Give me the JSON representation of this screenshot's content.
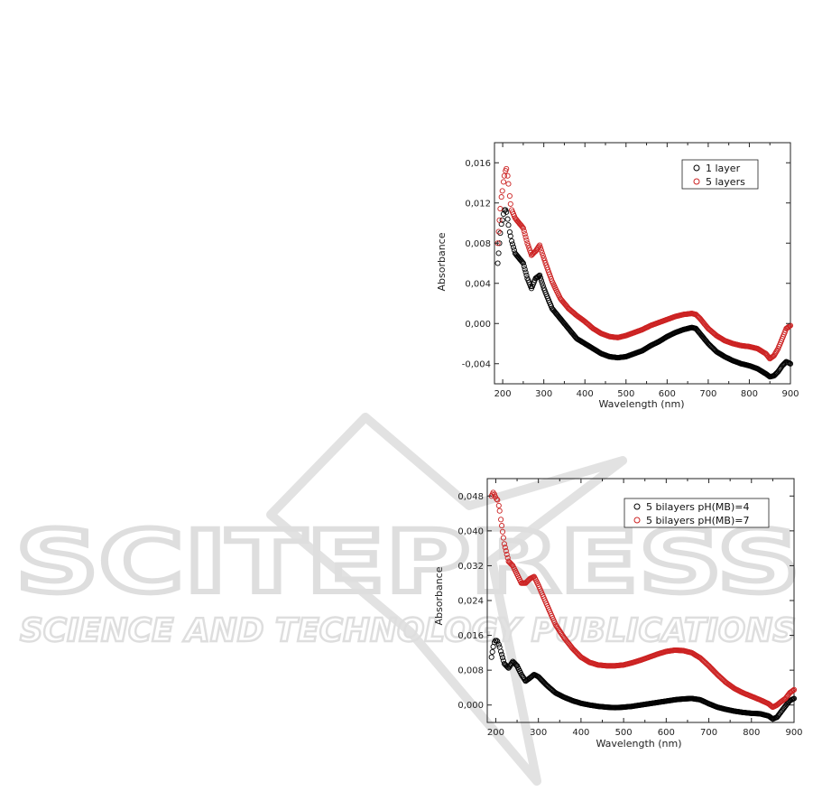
{
  "watermark": {
    "brand": "SCITEPRESS",
    "tagline": "SCIENCE AND TECHNOLOGY PUBLICATIONS",
    "color": "#dcdcdc"
  },
  "chart_data": [
    {
      "type": "scatter",
      "xlabel": "Wavelength (nm)",
      "ylabel": "Absorbance",
      "xlim": [
        180,
        900
      ],
      "ylim": [
        -0.006,
        0.018
      ],
      "xticks": [
        200,
        300,
        400,
        500,
        600,
        700,
        800,
        900
      ],
      "yticks": [
        -0.004,
        0.0,
        0.004,
        0.008,
        0.012,
        0.016
      ],
      "ytick_labels": [
        "-0,004",
        "0,000",
        "0,004",
        "0,008",
        "0,012",
        "0,016"
      ],
      "legend_position": "top-right",
      "marker": "open-circle",
      "series": [
        {
          "name": "1 layer",
          "color": "#000000",
          "x": [
            188,
            195,
            200,
            205,
            210,
            215,
            220,
            230,
            240,
            250,
            260,
            270,
            280,
            290,
            300,
            320,
            340,
            360,
            380,
            400,
            420,
            440,
            460,
            480,
            500,
            520,
            540,
            560,
            580,
            600,
            620,
            640,
            660,
            670,
            680,
            700,
            720,
            740,
            760,
            780,
            800,
            820,
            840,
            850,
            860,
            870,
            880,
            890,
            900
          ],
          "y": [
            0.006,
            0.0095,
            0.0105,
            0.0115,
            0.011,
            0.0095,
            0.0085,
            0.007,
            0.0065,
            0.006,
            0.0045,
            0.0035,
            0.0045,
            0.0048,
            0.0035,
            0.0015,
            0.0005,
            -0.0005,
            -0.0015,
            -0.002,
            -0.0025,
            -0.003,
            -0.0033,
            -0.0034,
            -0.0033,
            -0.003,
            -0.0027,
            -0.0022,
            -0.0018,
            -0.0013,
            -0.0009,
            -0.0006,
            -0.0004,
            -0.0005,
            -0.001,
            -0.002,
            -0.0028,
            -0.0033,
            -0.0037,
            -0.004,
            -0.0042,
            -0.0045,
            -0.005,
            -0.0053,
            -0.0052,
            -0.0048,
            -0.0042,
            -0.0038,
            -0.004
          ]
        },
        {
          "name": "5 layers",
          "color": "#cc2222",
          "x": [
            188,
            195,
            200,
            205,
            210,
            215,
            220,
            230,
            240,
            250,
            260,
            270,
            280,
            290,
            300,
            320,
            340,
            360,
            380,
            400,
            420,
            440,
            460,
            480,
            500,
            520,
            540,
            560,
            580,
            600,
            620,
            640,
            660,
            670,
            680,
            700,
            720,
            740,
            760,
            780,
            800,
            820,
            840,
            850,
            860,
            870,
            880,
            890,
            900
          ],
          "y": [
            0.008,
            0.012,
            0.0135,
            0.015,
            0.0155,
            0.0135,
            0.0115,
            0.0105,
            0.01,
            0.0095,
            0.008,
            0.0068,
            0.0072,
            0.0078,
            0.0065,
            0.0042,
            0.0025,
            0.0015,
            0.0008,
            0.0002,
            -0.0005,
            -0.001,
            -0.0013,
            -0.0014,
            -0.0012,
            -0.0009,
            -0.0006,
            -0.0002,
            0.0001,
            0.0004,
            0.0007,
            0.0009,
            0.001,
            0.0009,
            0.0005,
            -0.0005,
            -0.0012,
            -0.0017,
            -0.002,
            -0.0022,
            -0.0023,
            -0.0025,
            -0.003,
            -0.0035,
            -0.0032,
            -0.0025,
            -0.0015,
            -0.0005,
            -0.0002
          ]
        }
      ]
    },
    {
      "type": "scatter",
      "xlabel": "Wavelength (nm)",
      "ylabel": "Absorbance",
      "xlim": [
        180,
        900
      ],
      "ylim": [
        -0.004,
        0.052
      ],
      "xticks": [
        200,
        300,
        400,
        500,
        600,
        700,
        800,
        900
      ],
      "yticks": [
        0.0,
        0.008,
        0.016,
        0.024,
        0.032,
        0.04,
        0.048
      ],
      "ytick_labels": [
        "0,000",
        "0,008",
        "0,016",
        "0,024",
        "0,032",
        "0,040",
        "0,048"
      ],
      "legend_position": "top-right",
      "marker": "open-circle",
      "series": [
        {
          "name": "5 bilayers pH(MB)=4",
          "color": "#000000",
          "x": [
            190,
            195,
            200,
            205,
            210,
            220,
            230,
            240,
            250,
            260,
            270,
            280,
            290,
            300,
            320,
            340,
            360,
            380,
            400,
            420,
            440,
            460,
            480,
            500,
            520,
            540,
            560,
            580,
            600,
            620,
            640,
            660,
            680,
            700,
            720,
            740,
            760,
            780,
            800,
            820,
            840,
            850,
            860,
            870,
            880,
            890,
            900
          ],
          "y": [
            0.011,
            0.014,
            0.015,
            0.0145,
            0.013,
            0.0095,
            0.0085,
            0.01,
            0.009,
            0.007,
            0.0055,
            0.0062,
            0.007,
            0.0065,
            0.0045,
            0.0028,
            0.0018,
            0.001,
            0.0004,
            0.0,
            -0.0003,
            -0.0005,
            -0.0006,
            -0.0005,
            -0.0003,
            0.0,
            0.0003,
            0.0006,
            0.0009,
            0.0012,
            0.0014,
            0.0015,
            0.0012,
            0.0003,
            -0.0005,
            -0.001,
            -0.0014,
            -0.0017,
            -0.0019,
            -0.002,
            -0.0025,
            -0.0032,
            -0.0028,
            -0.0015,
            -0.0002,
            0.001,
            0.0015
          ]
        },
        {
          "name": "5 bilayers pH(MB)=7",
          "color": "#cc2222",
          "x": [
            190,
            195,
            200,
            205,
            210,
            220,
            230,
            240,
            250,
            260,
            270,
            280,
            290,
            300,
            320,
            340,
            360,
            380,
            400,
            420,
            440,
            460,
            480,
            500,
            520,
            540,
            560,
            580,
            600,
            620,
            640,
            660,
            680,
            700,
            720,
            740,
            760,
            780,
            800,
            820,
            840,
            850,
            860,
            870,
            880,
            890,
            900
          ],
          "y": [
            0.048,
            0.049,
            0.0475,
            0.047,
            0.044,
            0.037,
            0.033,
            0.032,
            0.03,
            0.028,
            0.028,
            0.029,
            0.0295,
            0.0275,
            0.023,
            0.0185,
            0.0155,
            0.013,
            0.011,
            0.0098,
            0.0092,
            0.009,
            0.009,
            0.0092,
            0.0097,
            0.0103,
            0.011,
            0.0117,
            0.0123,
            0.0126,
            0.0125,
            0.012,
            0.0108,
            0.009,
            0.007,
            0.0052,
            0.0038,
            0.0028,
            0.002,
            0.0012,
            0.0003,
            -0.0005,
            0.0,
            0.0008,
            0.0015,
            0.0028,
            0.0035
          ]
        }
      ]
    }
  ]
}
